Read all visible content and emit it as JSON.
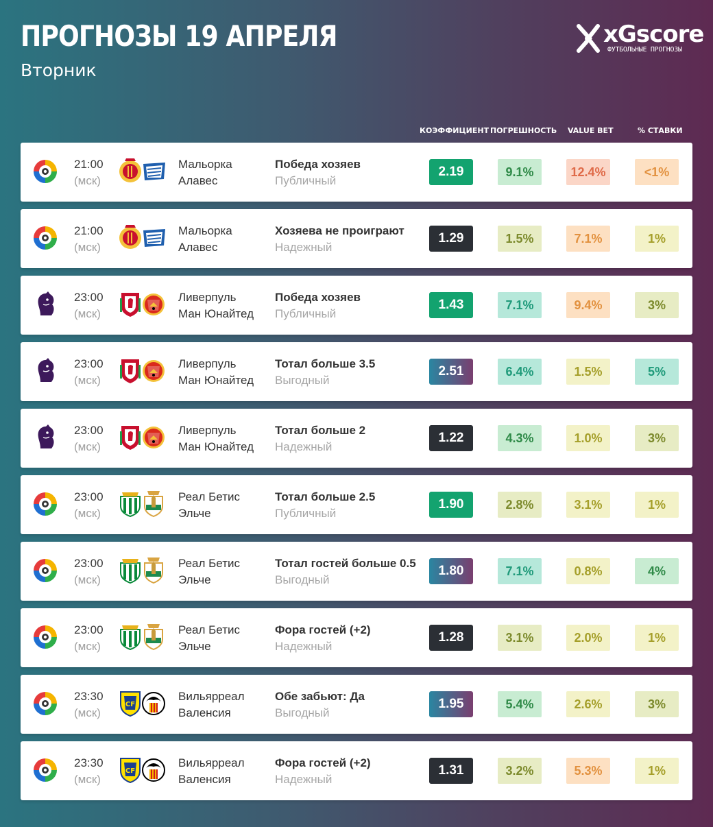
{
  "header": {
    "title": "ПРОГНОЗЫ 19 АПРЕЛЯ",
    "subtitle": "Вторник"
  },
  "brand": {
    "name": "xGscore",
    "tagline": "ФУТБОЛЬНЫЕ ПРОГНОЗЫ"
  },
  "columns": {
    "odds": "КОЭФФИЦИЕНТ",
    "error": "ПОГРЕШНОСТЬ",
    "value": "VALUE BET",
    "stake": "% СТАВКИ"
  },
  "colors": {
    "public": "#13a36f",
    "reliable": "#2b2f35",
    "profitable_start": "#2a86a1",
    "profitable_end": "#7a3e6f",
    "light_green": "#c8ecd2",
    "teal": "#b6e8da",
    "olive": "#e7ecc4",
    "pale_yellow": "#f3f2c8",
    "peach": "#fde0c2",
    "salmon": "#fbd6c7"
  },
  "matches": [
    {
      "league": "laliga-icon",
      "home_crest": "mallorca-crest-icon",
      "away_crest": "alaves-crest-icon",
      "time": "21:00",
      "tz": "(мск)",
      "home": "Мальорка",
      "away": "Алавес",
      "bet": "Победа хозяев",
      "bet_type": "Публичный",
      "odds_style": "public",
      "odds": "2.19",
      "error": "9.1%",
      "error_bg": "#c8ecd2",
      "error_fg": "#2f8a48",
      "value": "12.4%",
      "value_bg": "#fbd6c7",
      "value_fg": "#df6a48",
      "stake": "<1%",
      "stake_bg": "#fde0c2",
      "stake_fg": "#e2913f"
    },
    {
      "league": "laliga-icon",
      "home_crest": "mallorca-crest-icon",
      "away_crest": "alaves-crest-icon",
      "time": "21:00",
      "tz": "(мск)",
      "home": "Мальорка",
      "away": "Алавес",
      "bet": "Хозяева не проиграют",
      "bet_type": "Надежный",
      "odds_style": "reliable",
      "odds": "1.29",
      "error": "1.5%",
      "error_bg": "#e7ecc4",
      "error_fg": "#7c8a2c",
      "value": "7.1%",
      "value_bg": "#fde0c2",
      "value_fg": "#e2913f",
      "stake": "1%",
      "stake_bg": "#f3f2c8",
      "stake_fg": "#a59f2a"
    },
    {
      "league": "premier-league-icon",
      "home_crest": "liverpool-crest-icon",
      "away_crest": "man-united-crest-icon",
      "time": "23:00",
      "tz": "(мск)",
      "home": "Ливерпуль",
      "away": "Ман Юнайтед",
      "bet": "Победа хозяев",
      "bet_type": "Публичный",
      "odds_style": "public",
      "odds": "1.43",
      "error": "7.1%",
      "error_bg": "#b6e8da",
      "error_fg": "#1f9a7a",
      "value": "9.4%",
      "value_bg": "#fde0c2",
      "value_fg": "#e2913f",
      "stake": "3%",
      "stake_bg": "#e7ecc4",
      "stake_fg": "#7c8a2c"
    },
    {
      "league": "premier-league-icon",
      "home_crest": "liverpool-crest-icon",
      "away_crest": "man-united-crest-icon",
      "time": "23:00",
      "tz": "(мск)",
      "home": "Ливерпуль",
      "away": "Ман Юнайтед",
      "bet": "Тотал больше 3.5",
      "bet_type": "Выгодный",
      "odds_style": "profitable",
      "odds": "2.51",
      "error": "6.4%",
      "error_bg": "#b6e8da",
      "error_fg": "#1f9a7a",
      "value": "1.5%",
      "value_bg": "#f3f2c8",
      "value_fg": "#a59f2a",
      "stake": "5%",
      "stake_bg": "#b6e8da",
      "stake_fg": "#1f9a7a"
    },
    {
      "league": "premier-league-icon",
      "home_crest": "liverpool-crest-icon",
      "away_crest": "man-united-crest-icon",
      "time": "23:00",
      "tz": "(мск)",
      "home": "Ливерпуль",
      "away": "Ман Юнайтед",
      "bet": "Тотал больше 2",
      "bet_type": "Надежный",
      "odds_style": "reliable",
      "odds": "1.22",
      "error": "4.3%",
      "error_bg": "#c8ecd2",
      "error_fg": "#2f8a48",
      "value": "1.0%",
      "value_bg": "#f3f2c8",
      "value_fg": "#a59f2a",
      "stake": "3%",
      "stake_bg": "#e7ecc4",
      "stake_fg": "#7c8a2c"
    },
    {
      "league": "laliga-icon",
      "home_crest": "real-betis-crest-icon",
      "away_crest": "elche-crest-icon",
      "time": "23:00",
      "tz": "(мск)",
      "home": "Реал Бетис",
      "away": "Эльче",
      "bet": "Тотал больше 2.5",
      "bet_type": "Публичный",
      "odds_style": "public",
      "odds": "1.90",
      "error": "2.8%",
      "error_bg": "#e7ecc4",
      "error_fg": "#7c8a2c",
      "value": "3.1%",
      "value_bg": "#f3f2c8",
      "value_fg": "#a59f2a",
      "stake": "1%",
      "stake_bg": "#f3f2c8",
      "stake_fg": "#a59f2a"
    },
    {
      "league": "laliga-icon",
      "home_crest": "real-betis-crest-icon",
      "away_crest": "elche-crest-icon",
      "time": "23:00",
      "tz": "(мск)",
      "home": "Реал Бетис",
      "away": "Эльче",
      "bet": "Тотал гостей больше 0.5",
      "bet_type": "Выгодный",
      "odds_style": "profitable",
      "odds": "1.80",
      "error": "7.1%",
      "error_bg": "#b6e8da",
      "error_fg": "#1f9a7a",
      "value": "0.8%",
      "value_bg": "#f3f2c8",
      "value_fg": "#a59f2a",
      "stake": "4%",
      "stake_bg": "#c8ecd2",
      "stake_fg": "#2f8a48"
    },
    {
      "league": "laliga-icon",
      "home_crest": "real-betis-crest-icon",
      "away_crest": "elche-crest-icon",
      "time": "23:00",
      "tz": "(мск)",
      "home": "Реал Бетис",
      "away": "Эльче",
      "bet": "Фора гостей (+2)",
      "bet_type": "Надежный",
      "odds_style": "reliable",
      "odds": "1.28",
      "error": "3.1%",
      "error_bg": "#e7ecc4",
      "error_fg": "#7c8a2c",
      "value": "2.0%",
      "value_bg": "#f3f2c8",
      "value_fg": "#a59f2a",
      "stake": "1%",
      "stake_bg": "#f3f2c8",
      "stake_fg": "#a59f2a"
    },
    {
      "league": "laliga-icon",
      "home_crest": "villarreal-crest-icon",
      "away_crest": "valencia-crest-icon",
      "time": "23:30",
      "tz": "(мск)",
      "home": "Вильярреал",
      "away": "Валенсия",
      "bet": "Обе забьют: Да",
      "bet_type": "Выгодный",
      "odds_style": "profitable",
      "odds": "1.95",
      "error": "5.4%",
      "error_bg": "#c8ecd2",
      "error_fg": "#2f8a48",
      "value": "2.6%",
      "value_bg": "#f3f2c8",
      "value_fg": "#a59f2a",
      "stake": "3%",
      "stake_bg": "#e7ecc4",
      "stake_fg": "#7c8a2c"
    },
    {
      "league": "laliga-icon",
      "home_crest": "villarreal-crest-icon",
      "away_crest": "valencia-crest-icon",
      "time": "23:30",
      "tz": "(мск)",
      "home": "Вильярреал",
      "away": "Валенсия",
      "bet": "Фора гостей (+2)",
      "bet_type": "Надежный",
      "odds_style": "reliable",
      "odds": "1.31",
      "error": "3.2%",
      "error_bg": "#e7ecc4",
      "error_fg": "#7c8a2c",
      "value": "5.3%",
      "value_bg": "#fde0c2",
      "value_fg": "#e2913f",
      "stake": "1%",
      "stake_bg": "#f3f2c8",
      "stake_fg": "#a59f2a"
    }
  ]
}
